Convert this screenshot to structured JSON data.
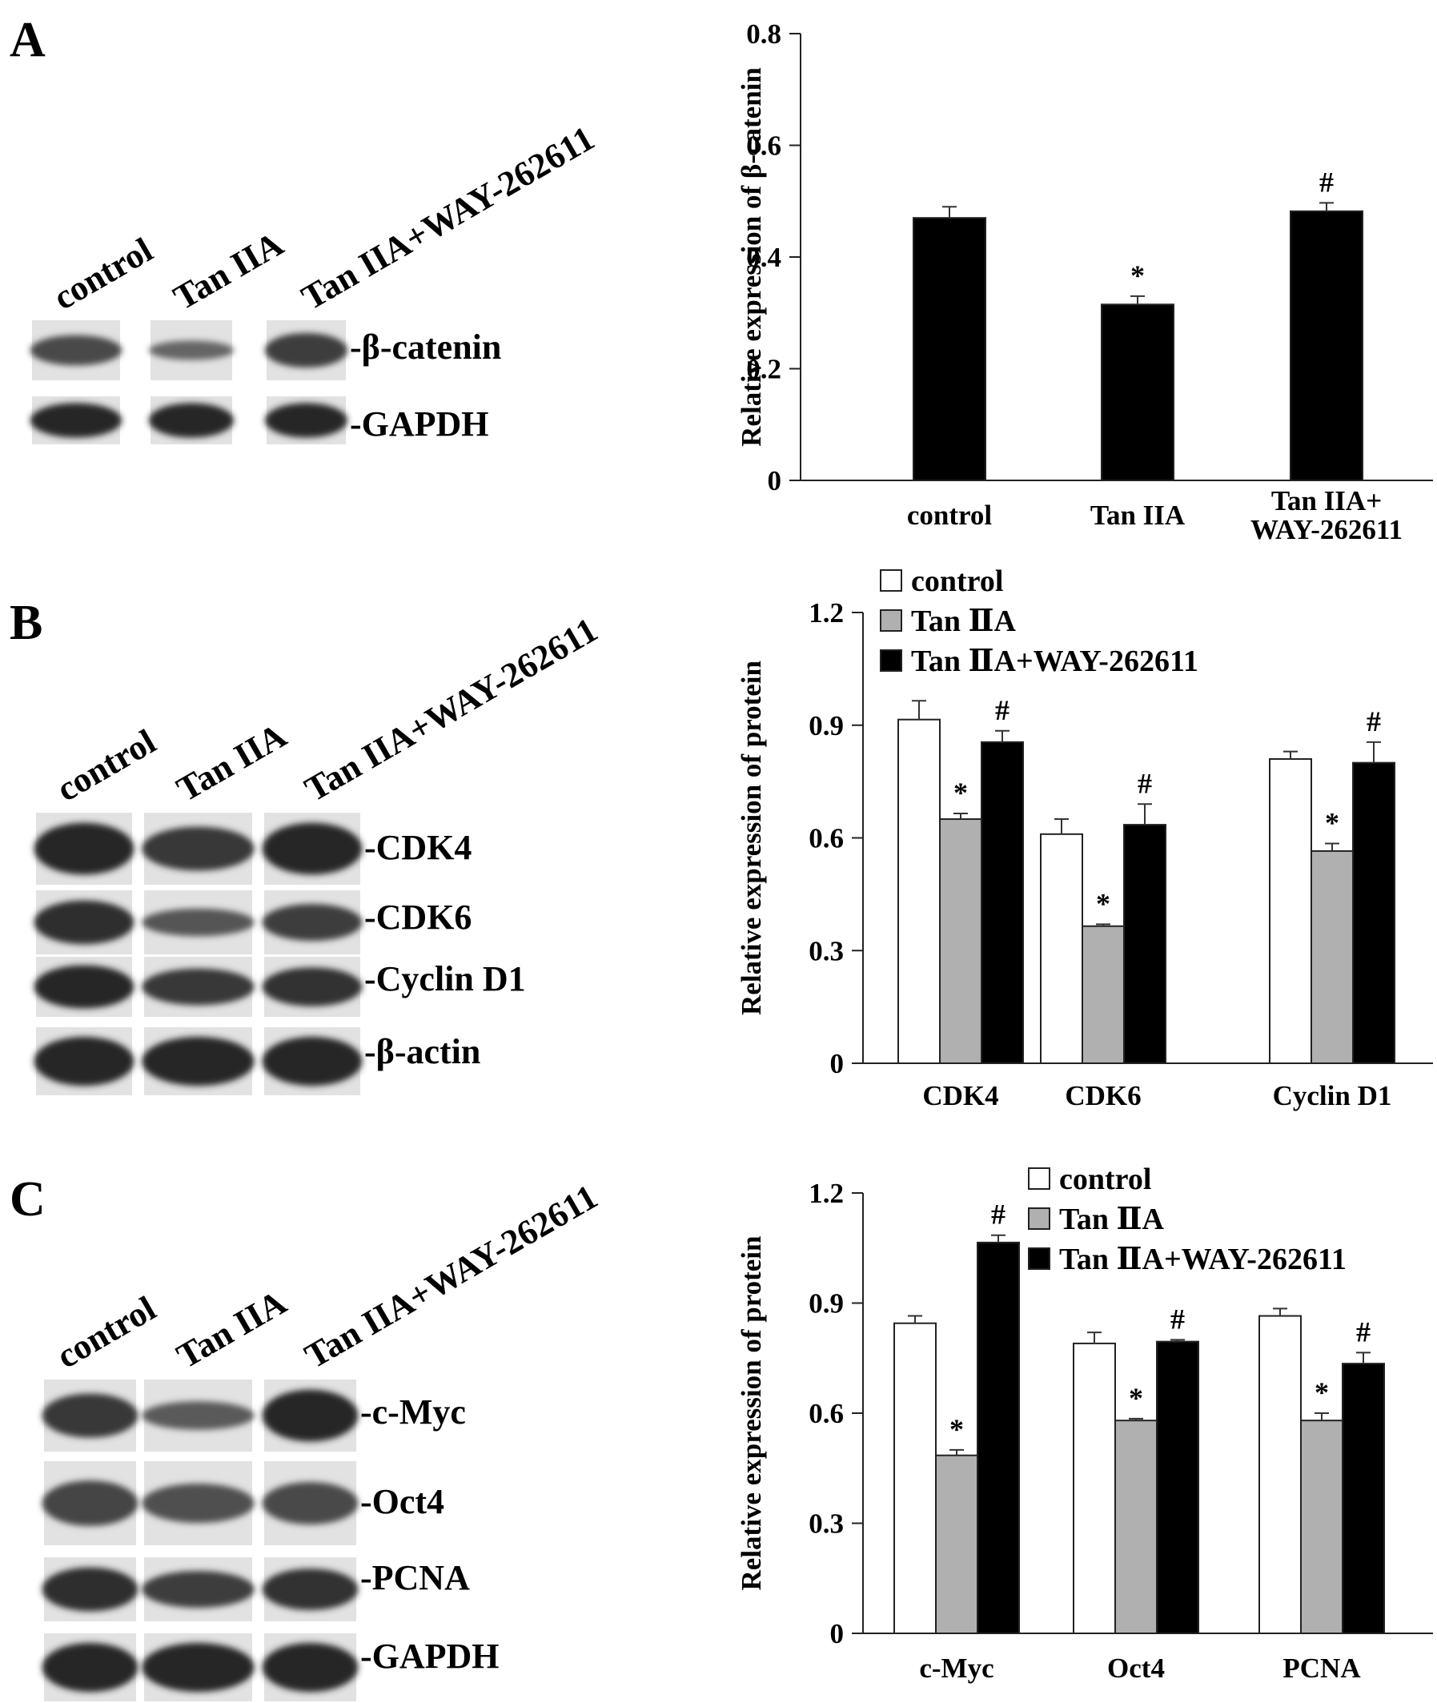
{
  "panels": [
    {
      "letter": "A",
      "blot": {
        "lanes": [
          "control",
          "Tan IIA",
          "Tan IIA+WAY-262611"
        ],
        "rows": [
          {
            "label": "-β-catenin",
            "intensity": [
              0.7,
              0.45,
              0.8
            ]
          },
          {
            "label": "-GAPDH",
            "intensity": [
              1.0,
              1.0,
              1.0
            ]
          }
        ]
      }
    },
    {
      "letter": "B",
      "blot": {
        "lanes": [
          "control",
          "Tan IIA",
          "Tan IIA+WAY-262611"
        ],
        "rows": [
          {
            "label": "-CDK4",
            "intensity": [
              1.0,
              0.85,
              1.0
            ]
          },
          {
            "label": "-CDK6",
            "intensity": [
              0.95,
              0.6,
              0.8
            ]
          },
          {
            "label": "-Cyclin D1",
            "intensity": [
              1.0,
              0.85,
              0.9
            ]
          },
          {
            "label": "-β-actin",
            "intensity": [
              1.0,
              1.0,
              1.0
            ]
          }
        ]
      }
    },
    {
      "letter": "C",
      "blot": {
        "lanes": [
          "control",
          "Tan IIA",
          "Tan IIA+WAY-262611"
        ],
        "rows": [
          {
            "label": "-c-Myc",
            "intensity": [
              0.85,
              0.55,
              1.0
            ]
          },
          {
            "label": "-Oct4",
            "intensity": [
              0.75,
              0.65,
              0.7
            ]
          },
          {
            "label": "-PCNA",
            "intensity": [
              0.95,
              0.8,
              0.9
            ]
          },
          {
            "label": "-GAPDH",
            "intensity": [
              1.0,
              1.0,
              1.0
            ]
          }
        ]
      }
    }
  ],
  "chart_data": [
    {
      "type": "bar",
      "panel": "A",
      "categories": [
        "control",
        "Tan IIA",
        "Tan IIA+\nWAY-262611"
      ],
      "series": [
        {
          "values": [
            0.47,
            0.315,
            0.482
          ],
          "errors": [
            0.02,
            0.015,
            0.015
          ],
          "markers": [
            "",
            "*",
            "#"
          ],
          "color": "#000000"
        }
      ],
      "ylabel": "Relative expression of β-catenin",
      "ylim": [
        0,
        0.8
      ],
      "yticks": [
        "0",
        "0.2",
        "0.4",
        "0.6",
        "0.8"
      ],
      "legend": "none"
    },
    {
      "type": "bar",
      "panel": "B",
      "categories": [
        "CDK4",
        "CDK6",
        "Cyclin D1"
      ],
      "series": [
        {
          "name": "control",
          "values": [
            0.915,
            0.61,
            0.81
          ],
          "errors": [
            0.05,
            0.04,
            0.02
          ],
          "markers": [
            "",
            "",
            ""
          ],
          "color": "#ffffff"
        },
        {
          "name": "Tan ⅡA",
          "values": [
            0.65,
            0.365,
            0.565
          ],
          "errors": [
            0.015,
            0.005,
            0.02
          ],
          "markers": [
            "*",
            "*",
            "*"
          ],
          "color": "#b0b0b0"
        },
        {
          "name": "Tan ⅡA+WAY-262611",
          "values": [
            0.855,
            0.635,
            0.8
          ],
          "errors": [
            0.03,
            0.055,
            0.055
          ],
          "markers": [
            "#",
            "#",
            "#"
          ],
          "color": "#000000"
        }
      ],
      "ylabel": "Relative expression of protein",
      "ylim": [
        0,
        1.2
      ],
      "yticks": [
        "0",
        "0.3",
        "0.6",
        "0.9",
        "1.2"
      ],
      "legend": "top-left"
    },
    {
      "type": "bar",
      "panel": "C",
      "categories": [
        "c-Myc",
        "Oct4",
        "PCNA"
      ],
      "series": [
        {
          "name": "control",
          "values": [
            0.845,
            0.79,
            0.865
          ],
          "errors": [
            0.02,
            0.03,
            0.02
          ],
          "markers": [
            "",
            "",
            ""
          ],
          "color": "#ffffff"
        },
        {
          "name": "Tan ⅡA",
          "values": [
            0.485,
            0.58,
            0.58
          ],
          "errors": [
            0.015,
            0.005,
            0.02
          ],
          "markers": [
            "*",
            "*",
            "*"
          ],
          "color": "#b0b0b0"
        },
        {
          "name": "Tan ⅡA+WAY-262611",
          "values": [
            1.065,
            0.795,
            0.735
          ],
          "errors": [
            0.02,
            0.005,
            0.03
          ],
          "markers": [
            "#",
            "#",
            "#"
          ],
          "color": "#000000"
        }
      ],
      "ylabel": "Relative expression of protein",
      "ylim": [
        0,
        1.2
      ],
      "yticks": [
        "0",
        "0.3",
        "0.6",
        "0.9",
        "1.2"
      ],
      "legend": "top-left"
    }
  ]
}
